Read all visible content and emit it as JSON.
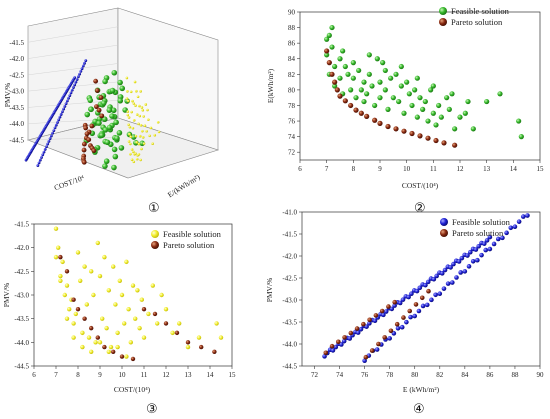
{
  "figure": {
    "panel_numbers": [
      "①",
      "②",
      "③",
      "④"
    ]
  },
  "colors": {
    "pareto": "#8a2a12",
    "feasible_green": "#35b82a",
    "feasible_yellow": "#f2ee2e",
    "feasible_blue": "#1f22d6"
  },
  "chart_data": [
    {
      "panel": "①",
      "type": "scatter",
      "xlabel": "COST/10⁴",
      "ylabel": "E/(kWh/m²)",
      "zlabel": "PMV/%",
      "z_ticks": [
        "-41.5",
        "-42.0",
        "-42.5",
        "-43.0",
        "-43.5",
        "-44.0",
        "-44.5"
      ],
      "zlim": [
        -44.5,
        -41.0
      ],
      "description_series": [
        "Feasible solution",
        "Pareto solution"
      ]
    },
    {
      "panel": "②",
      "type": "scatter",
      "xlabel": "COST/(10⁴)",
      "ylabel": "E(kWh/m²)",
      "xlim": [
        6,
        15
      ],
      "ylim": [
        71,
        90
      ],
      "x_ticks": [
        "6",
        "7",
        "8",
        "9",
        "10",
        "11",
        "12",
        "13",
        "14",
        "15"
      ],
      "y_ticks": [
        "72",
        "74",
        "76",
        "78",
        "80",
        "82",
        "84",
        "86",
        "88",
        "90"
      ],
      "legend": "top-right",
      "series": [
        {
          "name": "Feasible solution",
          "color": "#35b82a",
          "x": [
            7.0,
            7.0,
            7.1,
            7.1,
            7.2,
            7.3,
            7.3,
            7.5,
            7.5,
            7.6,
            7.7,
            7.8,
            7.9,
            8.0,
            8.1,
            8.2,
            8.3,
            8.4,
            8.4,
            8.5,
            8.6,
            8.7,
            8.8,
            8.9,
            9.0,
            9.0,
            9.1,
            9.2,
            9.3,
            9.4,
            9.5,
            9.6,
            9.7,
            9.8,
            9.9,
            10.0,
            10.1,
            10.2,
            10.3,
            10.4,
            10.5,
            10.6,
            10.7,
            10.8,
            10.9,
            11.0,
            11.1,
            11.2,
            11.3,
            11.5,
            11.6,
            11.8,
            12.0,
            12.2,
            12.5,
            13.0,
            13.5,
            14.2,
            14.3,
            7.2,
            7.6,
            8.0,
            8.6,
            9.2,
            9.8,
            10.4,
            11.0,
            11.7,
            12.3
          ],
          "y": [
            86.5,
            84.5,
            87.0,
            82.0,
            85.5,
            83.0,
            80.5,
            84.0,
            81.5,
            79.5,
            83.0,
            82.0,
            80.0,
            81.5,
            79.0,
            82.5,
            80.0,
            78.5,
            81.0,
            79.5,
            82.0,
            80.5,
            78.0,
            84.0,
            81.0,
            79.0,
            83.5,
            80.0,
            77.5,
            81.5,
            79.0,
            82.0,
            78.5,
            80.5,
            77.0,
            81.0,
            79.5,
            78.0,
            80.0,
            76.5,
            79.0,
            77.5,
            78.5,
            76.0,
            80.0,
            77.0,
            75.5,
            78.0,
            76.5,
            79.0,
            77.5,
            75.0,
            76.5,
            77.0,
            75.0,
            78.5,
            79.5,
            76.0,
            74.0,
            88.0,
            85.0,
            83.5,
            84.5,
            82.5,
            83.0,
            81.5,
            80.5,
            79.5,
            78.5
          ]
        },
        {
          "name": "Pareto solution",
          "color": "#8a2a12",
          "x": [
            7.0,
            7.1,
            7.2,
            7.3,
            7.4,
            7.5,
            7.7,
            7.9,
            8.1,
            8.3,
            8.5,
            8.8,
            9.0,
            9.3,
            9.6,
            9.9,
            10.2,
            10.5,
            10.8,
            11.1,
            11.4,
            11.8
          ],
          "y": [
            85.0,
            83.5,
            82.0,
            81.0,
            80.0,
            79.2,
            78.6,
            78.0,
            77.4,
            77.0,
            76.6,
            76.1,
            75.7,
            75.3,
            75.0,
            74.7,
            74.4,
            74.1,
            73.8,
            73.5,
            73.2,
            72.9
          ]
        }
      ]
    },
    {
      "panel": "③",
      "type": "scatter",
      "xlabel": "COST/(10⁴)",
      "ylabel": "PMV/%",
      "xlim": [
        6,
        15
      ],
      "ylim": [
        -44.5,
        -41.5
      ],
      "x_ticks": [
        "6",
        "7",
        "8",
        "9",
        "10",
        "11",
        "12",
        "13",
        "14",
        "15"
      ],
      "y_ticks": [
        "-41.5",
        "-42.0",
        "-42.5",
        "-43.0",
        "-43.5",
        "-44.0",
        "-44.5"
      ],
      "legend": "top-right",
      "series": [
        {
          "name": "Feasible solution",
          "color": "#f2ee2e",
          "x": [
            7.0,
            7.0,
            7.1,
            7.2,
            7.3,
            7.4,
            7.5,
            7.6,
            7.7,
            7.8,
            7.9,
            8.0,
            8.1,
            8.2,
            8.3,
            8.4,
            8.5,
            8.6,
            8.7,
            8.8,
            8.9,
            9.0,
            9.1,
            9.2,
            9.3,
            9.4,
            9.5,
            9.6,
            9.7,
            9.8,
            9.9,
            10.0,
            10.1,
            10.2,
            10.3,
            10.4,
            10.5,
            10.6,
            10.7,
            10.8,
            10.9,
            11.0,
            11.2,
            11.4,
            11.6,
            11.8,
            12.0,
            12.3,
            12.6,
            13.0,
            13.5,
            14.3,
            14.5,
            7.2,
            7.5,
            7.8,
            8.2,
            8.6,
            9.0,
            9.4,
            9.8,
            10.2
          ],
          "y": [
            -41.6,
            -42.2,
            -42.0,
            -42.6,
            -42.3,
            -43.0,
            -42.8,
            -43.3,
            -43.1,
            -43.6,
            -43.4,
            -42.1,
            -42.7,
            -43.8,
            -42.4,
            -43.2,
            -43.9,
            -42.5,
            -43.0,
            -44.0,
            -41.9,
            -42.6,
            -43.5,
            -42.2,
            -43.7,
            -42.9,
            -44.1,
            -42.4,
            -43.2,
            -43.8,
            -42.7,
            -43.0,
            -43.6,
            -42.3,
            -43.3,
            -44.0,
            -42.8,
            -43.5,
            -42.9,
            -43.7,
            -43.1,
            -43.9,
            -43.4,
            -42.8,
            -43.6,
            -43.0,
            -43.3,
            -43.8,
            -43.6,
            -44.1,
            -43.9,
            -43.6,
            -43.9,
            -42.7,
            -43.5,
            -43.9,
            -44.1,
            -44.2,
            -44.0,
            -44.2,
            -44.1,
            -44.3
          ]
        },
        {
          "name": "Pareto solution",
          "color": "#8a2a12",
          "x": [
            7.2,
            7.5,
            7.8,
            8.0,
            8.3,
            8.6,
            8.9,
            9.2,
            9.6,
            10.0,
            10.5,
            11.0,
            11.5,
            12.0,
            12.5,
            13.0,
            13.6,
            14.2
          ],
          "y": [
            -42.2,
            -42.5,
            -43.1,
            -43.3,
            -43.5,
            -43.7,
            -43.9,
            -44.1,
            -44.2,
            -44.3,
            -44.35,
            -43.3,
            -43.4,
            -43.6,
            -43.8,
            -44.0,
            -44.1,
            -44.2
          ]
        }
      ]
    },
    {
      "panel": "④",
      "type": "scatter",
      "xlabel": "E (kWh/m²)",
      "ylabel": "PMV/%",
      "xlim": [
        71,
        90
      ],
      "ylim": [
        -44.5,
        -41.0
      ],
      "x_ticks": [
        "72",
        "74",
        "76",
        "78",
        "80",
        "82",
        "84",
        "86",
        "88",
        "90"
      ],
      "y_ticks": [
        "-41.0",
        "-41.5",
        "-42.0",
        "-42.5",
        "-43.0",
        "-43.5",
        "-44.0",
        "-44.5"
      ],
      "legend": "top-right",
      "series": [
        {
          "name": "Feasible solution",
          "color": "#1f22d6",
          "lines": [
            {
              "x_from": 72.8,
              "y_from": -44.25,
              "x_to": 86.0,
              "y_to": -41.6,
              "count": 60
            },
            {
              "x_from": 76.0,
              "y_from": -44.35,
              "x_to": 89.0,
              "y_to": -41.05,
              "count": 40
            }
          ]
        },
        {
          "name": "Pareto solution",
          "color": "#8a2a12",
          "x": [
            72.9,
            73.4,
            73.9,
            74.4,
            74.9,
            75.4,
            75.9,
            76.4,
            76.9,
            77.4,
            77.9,
            78.4,
            76.1,
            76.6,
            77.1,
            77.6,
            78.1,
            78.6,
            79.1,
            79.6,
            80.1,
            80.6,
            81.1
          ],
          "y": [
            -44.2,
            -44.05,
            -43.95,
            -43.85,
            -43.75,
            -43.65,
            -43.55,
            -43.45,
            -43.35,
            -43.25,
            -43.15,
            -43.05,
            -44.3,
            -44.15,
            -44.0,
            -43.85,
            -43.7,
            -43.55,
            -43.4,
            -43.25,
            -43.1,
            -42.95,
            -42.8
          ]
        }
      ]
    }
  ]
}
